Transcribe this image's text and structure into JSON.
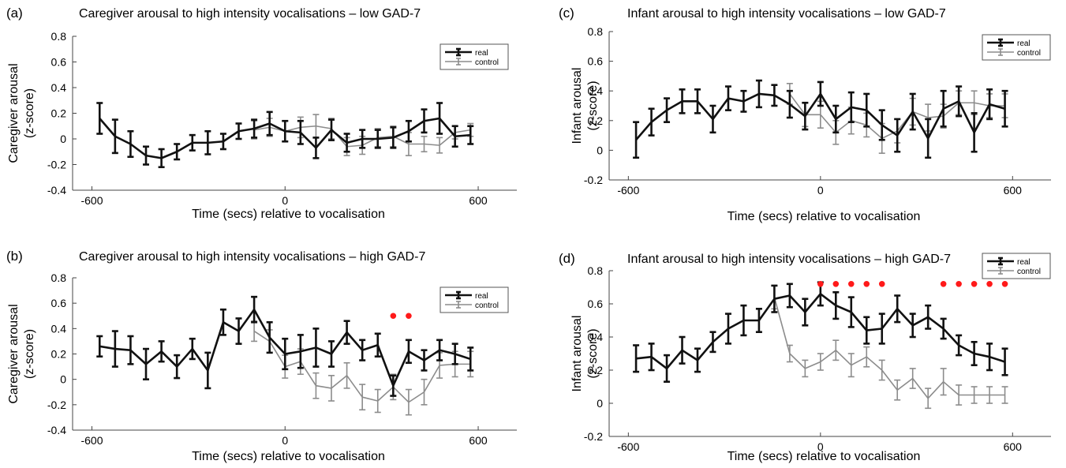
{
  "chart_data": [
    {
      "panel": "(a)",
      "type": "line",
      "title": "Caregiver arousal to high intensity vocalisations – low GAD-7",
      "xlabel": "Time (secs) relative to vocalisation",
      "ylabel_lines": [
        "Caregiver arousal",
        "(z-score)"
      ],
      "xticks": [
        "-600",
        "0",
        "600"
      ],
      "yticks": [
        "-0.4",
        "-0.2",
        "0",
        "0.2",
        "0.4",
        "0.6",
        "0.8"
      ],
      "xlim": [
        -660,
        720
      ],
      "ylim": [
        -0.4,
        0.8
      ],
      "legend": [
        "real",
        "control"
      ],
      "legend_position": "top-right",
      "significance_x": [],
      "series": [
        {
          "name": "real",
          "color": "#111111",
          "x": [
            -576,
            -528,
            -480,
            -432,
            -384,
            -336,
            -288,
            -240,
            -192,
            -144,
            -96,
            -48,
            0,
            48,
            96,
            144,
            192,
            240,
            288,
            336,
            384,
            432,
            480,
            528,
            576
          ],
          "y": [
            0.16,
            0.02,
            -0.04,
            -0.13,
            -0.15,
            -0.1,
            -0.03,
            -0.03,
            -0.02,
            0.06,
            0.08,
            0.12,
            0.06,
            0.05,
            -0.07,
            0.07,
            -0.03,
            0.0,
            0.0,
            0.01,
            0.06,
            0.14,
            0.16,
            0.02,
            0.03
          ],
          "err": [
            0.12,
            0.13,
            0.1,
            0.07,
            0.07,
            0.06,
            0.06,
            0.09,
            0.06,
            0.06,
            0.07,
            0.09,
            0.08,
            0.09,
            0.08,
            0.08,
            0.07,
            0.07,
            0.07,
            0.08,
            0.08,
            0.09,
            0.12,
            0.08,
            0.07
          ]
        },
        {
          "name": "control",
          "color": "#8c8c8c",
          "x": [
            -96,
            -48,
            0,
            48,
            96,
            144,
            192,
            240,
            288,
            336,
            384,
            432,
            480,
            528,
            576
          ],
          "y": [
            0.07,
            0.09,
            0.06,
            0.09,
            0.1,
            0.08,
            -0.06,
            -0.05,
            0.01,
            0.02,
            -0.04,
            -0.04,
            -0.05,
            0.05,
            0.07
          ],
          "err": [
            0.07,
            0.07,
            0.08,
            0.08,
            0.09,
            0.08,
            0.07,
            0.07,
            0.07,
            0.08,
            0.09,
            0.06,
            0.06,
            0.05,
            0.05
          ]
        }
      ]
    },
    {
      "panel": "(b)",
      "type": "line",
      "title": "Caregiver arousal to high intensity vocalisations – high GAD-7",
      "xlabel": "Time (secs) relative to vocalisation",
      "ylabel_lines": [
        "Caregiver arousal",
        "(z-score)"
      ],
      "xticks": [
        "-600",
        "0",
        "600"
      ],
      "yticks": [
        "-0.4",
        "-0.2",
        "0",
        "0.2",
        "0.4",
        "0.6",
        "0.8"
      ],
      "xlim": [
        -660,
        720
      ],
      "ylim": [
        -0.4,
        0.8
      ],
      "legend": [
        "real",
        "control"
      ],
      "legend_position": "top-right",
      "significance_x": [
        336,
        384
      ],
      "series": [
        {
          "name": "real",
          "color": "#111111",
          "x": [
            -576,
            -528,
            -480,
            -432,
            -384,
            -336,
            -288,
            -240,
            -192,
            -144,
            -96,
            -48,
            0,
            48,
            96,
            144,
            192,
            240,
            288,
            336,
            384,
            432,
            480,
            528,
            576
          ],
          "y": [
            0.26,
            0.24,
            0.23,
            0.12,
            0.22,
            0.1,
            0.24,
            0.07,
            0.45,
            0.38,
            0.55,
            0.33,
            0.2,
            0.22,
            0.25,
            0.2,
            0.37,
            0.23,
            0.27,
            -0.05,
            0.22,
            0.15,
            0.23,
            0.2,
            0.16
          ],
          "err": [
            0.08,
            0.14,
            0.11,
            0.12,
            0.08,
            0.09,
            0.08,
            0.14,
            0.1,
            0.1,
            0.1,
            0.12,
            0.12,
            0.13,
            0.15,
            0.1,
            0.09,
            0.08,
            0.09,
            0.08,
            0.09,
            0.08,
            0.08,
            0.08,
            0.09
          ]
        },
        {
          "name": "control",
          "color": "#8c8c8c",
          "x": [
            -96,
            -48,
            0,
            48,
            96,
            144,
            192,
            240,
            288,
            336,
            384,
            432,
            480,
            528,
            576
          ],
          "y": [
            0.38,
            0.3,
            0.1,
            0.14,
            -0.05,
            -0.07,
            0.03,
            -0.14,
            -0.17,
            -0.06,
            -0.18,
            -0.1,
            0.11,
            0.12,
            0.12
          ],
          "err": [
            0.08,
            0.09,
            0.09,
            0.1,
            0.1,
            0.1,
            0.1,
            0.1,
            0.09,
            0.1,
            0.1,
            0.1,
            0.1,
            0.1,
            0.1
          ]
        }
      ]
    },
    {
      "panel": "(c)",
      "type": "line",
      "title": "Infant arousal to high intensity vocalisations – low GAD-7",
      "xlabel": "Time (secs) relative to vocalisation",
      "ylabel_lines": [
        "Infant arousal",
        "(z-score)"
      ],
      "xticks": [
        "-600",
        "0",
        "600"
      ],
      "yticks": [
        "-0.2",
        "0",
        "0.2",
        "0.4",
        "0.6",
        "0.8"
      ],
      "xlim": [
        -660,
        720
      ],
      "ylim": [
        -0.2,
        0.8
      ],
      "legend": [
        "real",
        "control"
      ],
      "legend_position": "top-right",
      "significance_x": [],
      "series": [
        {
          "name": "real",
          "color": "#111111",
          "x": [
            -576,
            -528,
            -480,
            -432,
            -384,
            -336,
            -288,
            -240,
            -192,
            -144,
            -96,
            -48,
            0,
            48,
            96,
            144,
            192,
            240,
            288,
            336,
            384,
            432,
            480,
            528,
            576
          ],
          "y": [
            0.07,
            0.19,
            0.27,
            0.33,
            0.33,
            0.21,
            0.35,
            0.33,
            0.38,
            0.37,
            0.31,
            0.23,
            0.38,
            0.21,
            0.29,
            0.27,
            0.17,
            0.1,
            0.26,
            0.08,
            0.28,
            0.33,
            0.12,
            0.31,
            0.28
          ],
          "err": [
            0.12,
            0.09,
            0.08,
            0.08,
            0.08,
            0.09,
            0.08,
            0.07,
            0.09,
            0.07,
            0.09,
            0.09,
            0.08,
            0.09,
            0.1,
            0.11,
            0.1,
            0.11,
            0.12,
            0.13,
            0.12,
            0.1,
            0.13,
            0.1,
            0.12
          ]
        },
        {
          "name": "control",
          "color": "#8c8c8c",
          "x": [
            -96,
            -48,
            0,
            48,
            96,
            144,
            192,
            240,
            288,
            336,
            384,
            432,
            480,
            528,
            576
          ],
          "y": [
            0.38,
            0.24,
            0.24,
            0.12,
            0.2,
            0.17,
            0.08,
            0.13,
            0.26,
            0.22,
            0.23,
            0.32,
            0.32,
            0.3,
            0.3
          ],
          "err": [
            0.07,
            0.08,
            0.09,
            0.08,
            0.09,
            0.08,
            0.1,
            0.08,
            0.09,
            0.09,
            0.08,
            0.08,
            0.08,
            0.08,
            0.08
          ]
        }
      ]
    },
    {
      "panel": "(d)",
      "type": "line",
      "title": "Infant arousal to high intensity vocalisations – high GAD-7",
      "xlabel": "Time (secs) relative to vocalisation",
      "ylabel_lines": [
        "Infant arousal",
        "(z-score)"
      ],
      "xticks": [
        "-600",
        "0",
        "600"
      ],
      "yticks": [
        "-0.2",
        "0",
        "0.2",
        "0.4",
        "0.6",
        "0.8"
      ],
      "xlim": [
        -660,
        720
      ],
      "ylim": [
        -0.2,
        0.8
      ],
      "legend": [
        "real",
        "control"
      ],
      "legend_position": "top-right",
      "significance_x": [
        0,
        48,
        96,
        144,
        192,
        384,
        432,
        480,
        528,
        576
      ],
      "series": [
        {
          "name": "real",
          "color": "#111111",
          "x": [
            -576,
            -528,
            -480,
            -432,
            -384,
            -336,
            -288,
            -240,
            -192,
            -144,
            -96,
            -48,
            0,
            48,
            96,
            144,
            192,
            240,
            288,
            336,
            384,
            432,
            480,
            528,
            576
          ],
          "y": [
            0.27,
            0.28,
            0.21,
            0.32,
            0.26,
            0.37,
            0.45,
            0.5,
            0.5,
            0.63,
            0.65,
            0.55,
            0.66,
            0.59,
            0.55,
            0.44,
            0.45,
            0.57,
            0.47,
            0.52,
            0.45,
            0.35,
            0.3,
            0.28,
            0.25
          ],
          "err": [
            0.08,
            0.08,
            0.08,
            0.08,
            0.07,
            0.06,
            0.09,
            0.09,
            0.07,
            0.08,
            0.07,
            0.08,
            0.07,
            0.08,
            0.09,
            0.08,
            0.09,
            0.08,
            0.07,
            0.07,
            0.06,
            0.06,
            0.07,
            0.08,
            0.08
          ]
        },
        {
          "name": "control",
          "color": "#8c8c8c",
          "x": [
            -144,
            -96,
            -48,
            0,
            48,
            96,
            144,
            192,
            240,
            288,
            336,
            384,
            432,
            480,
            528,
            576
          ],
          "y": [
            0.64,
            0.3,
            0.21,
            0.25,
            0.32,
            0.23,
            0.28,
            0.2,
            0.08,
            0.15,
            0.03,
            0.13,
            0.05,
            0.05,
            0.05,
            0.05
          ],
          "err": [
            0.07,
            0.05,
            0.05,
            0.05,
            0.06,
            0.07,
            0.06,
            0.06,
            0.06,
            0.06,
            0.06,
            0.08,
            0.06,
            0.05,
            0.05,
            0.05
          ]
        }
      ]
    }
  ]
}
